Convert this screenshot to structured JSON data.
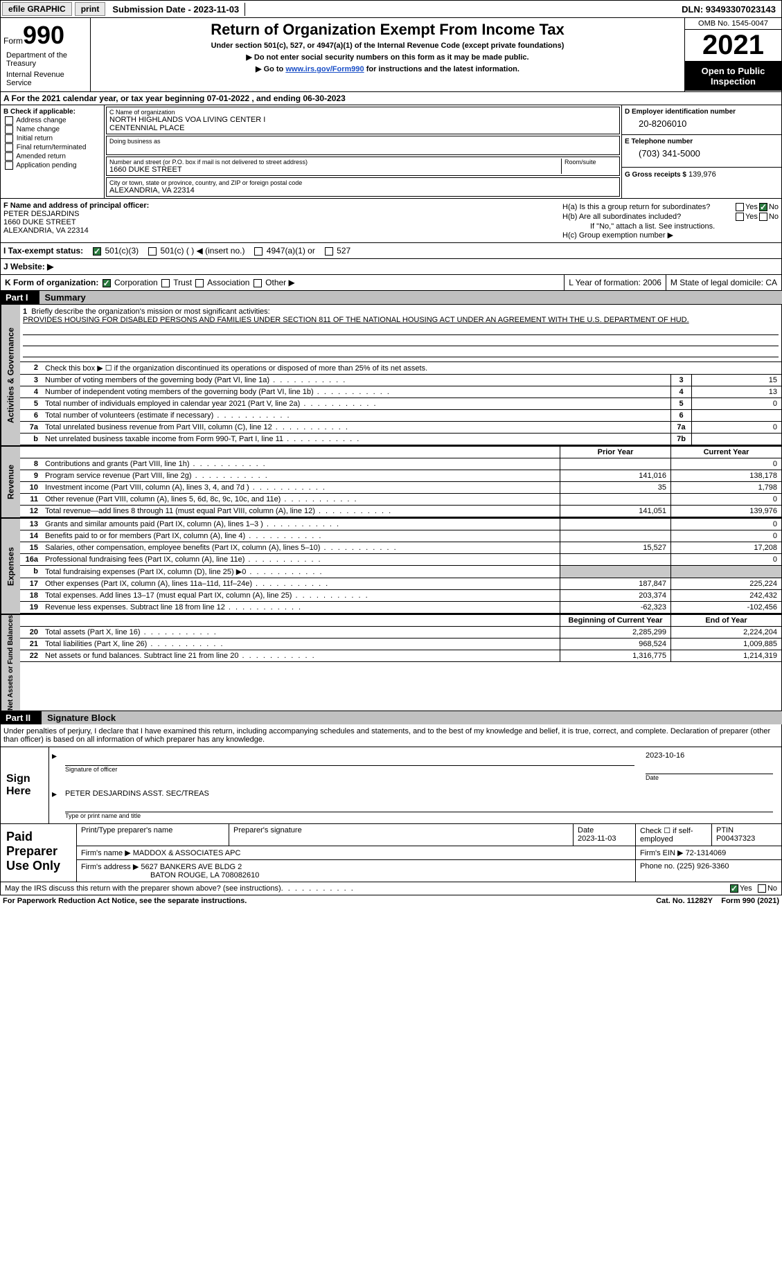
{
  "topbar": {
    "efile": "efile GRAPHIC",
    "print": "print",
    "submission": "Submission Date - 2023-11-03",
    "dln": "DLN: 93493307023143"
  },
  "header": {
    "form": "Form",
    "formnum": "990",
    "dept": "Department of the Treasury",
    "irs": "Internal Revenue Service",
    "title": "Return of Organization Exempt From Income Tax",
    "sub1": "Under section 501(c), 527, or 4947(a)(1) of the Internal Revenue Code (except private foundations)",
    "sub2": "▶ Do not enter social security numbers on this form as it may be made public.",
    "sub3": "▶ Go to ",
    "sub3link": "www.irs.gov/Form990",
    "sub3b": " for instructions and the latest information.",
    "omb": "OMB No. 1545-0047",
    "year": "2021",
    "opentopublic": "Open to Public Inspection"
  },
  "rowA": "A For the 2021 calendar year, or tax year beginning 07-01-2022    , and ending 06-30-2023",
  "colB": {
    "title": "B Check if applicable:",
    "items": [
      "Address change",
      "Name change",
      "Initial return",
      "Final return/terminated",
      "Amended return",
      "Application pending"
    ]
  },
  "colC": {
    "nameLbl": "C Name of organization",
    "name1": "NORTH HIGHLANDS VOA LIVING CENTER I",
    "name2": "CENTENNIAL PLACE",
    "dba": "Doing business as",
    "addrLbl": "Number and street (or P.O. box if mail is not delivered to street address)",
    "roomLbl": "Room/suite",
    "addr": "1660 DUKE STREET",
    "cityLbl": "City or town, state or province, country, and ZIP or foreign postal code",
    "city": "ALEXANDRIA, VA  22314"
  },
  "colD": {
    "einLbl": "D Employer identification number",
    "ein": "20-8206010",
    "telLbl": "E Telephone number",
    "tel": "(703) 341-5000",
    "grossLbl": "G Gross receipts $",
    "gross": "139,976"
  },
  "colF": {
    "lbl": "F  Name and address of principal officer:",
    "name": "PETER DESJARDINS",
    "addr1": "1660 DUKE STREET",
    "addr2": "ALEXANDRIA, VA  22314"
  },
  "colH": {
    "ha": "H(a)  Is this a group return for subordinates?",
    "hb": "H(b)  Are all subordinates included?",
    "hbnote": "If \"No,\" attach a list. See instructions.",
    "hc": "H(c)  Group exemption number ▶",
    "yes": "Yes",
    "no": "No"
  },
  "taxStatus": {
    "lbl": "I   Tax-exempt status:",
    "opts": [
      "501(c)(3)",
      "501(c) (  ) ◀ (insert no.)",
      "4947(a)(1) or",
      "527"
    ]
  },
  "website": "J   Website: ▶",
  "korg": {
    "k": "K Form of organization:",
    "opts": [
      "Corporation",
      "Trust",
      "Association",
      "Other ▶"
    ],
    "l": "L Year of formation: 2006",
    "m": "M State of legal domicile: CA"
  },
  "part1": {
    "pn": "Part I",
    "pt": "Summary",
    "sideA": "Activities & Governance",
    "sideR": "Revenue",
    "sideE": "Expenses",
    "sideN": "Net Assets or Fund Balances",
    "l1": "Briefly describe the organization's mission or most significant activities:",
    "mission": "PROVIDES HOUSING FOR DISABLED PERSONS AND FAMILIES UNDER SECTION 811 OF THE NATIONAL HOUSING ACT UNDER AN AGREEMENT WITH THE U.S. DEPARTMENT OF HUD.",
    "l2": "Check this box ▶ ☐  if the organization discontinued its operations or disposed of more than 25% of its net assets.",
    "rows": [
      {
        "n": "3",
        "d": "Number of voting members of the governing body (Part VI, line 1a)",
        "b": "3",
        "v": "15"
      },
      {
        "n": "4",
        "d": "Number of independent voting members of the governing body (Part VI, line 1b)",
        "b": "4",
        "v": "13"
      },
      {
        "n": "5",
        "d": "Total number of individuals employed in calendar year 2021 (Part V, line 2a)",
        "b": "5",
        "v": "0"
      },
      {
        "n": "6",
        "d": "Total number of volunteers (estimate if necessary)",
        "b": "6",
        "v": ""
      },
      {
        "n": "7a",
        "d": "Total unrelated business revenue from Part VIII, column (C), line 12",
        "b": "7a",
        "v": "0"
      },
      {
        "n": "b",
        "d": "Net unrelated business taxable income from Form 990-T, Part I, line 11",
        "b": "7b",
        "v": ""
      }
    ],
    "priorYear": "Prior Year",
    "currentYear": "Current Year",
    "rev": [
      {
        "n": "8",
        "d": "Contributions and grants (Part VIII, line 1h)",
        "v1": "",
        "v2": "0"
      },
      {
        "n": "9",
        "d": "Program service revenue (Part VIII, line 2g)",
        "v1": "141,016",
        "v2": "138,178"
      },
      {
        "n": "10",
        "d": "Investment income (Part VIII, column (A), lines 3, 4, and 7d )",
        "v1": "35",
        "v2": "1,798"
      },
      {
        "n": "11",
        "d": "Other revenue (Part VIII, column (A), lines 5, 6d, 8c, 9c, 10c, and 11e)",
        "v1": "",
        "v2": "0"
      },
      {
        "n": "12",
        "d": "Total revenue—add lines 8 through 11 (must equal Part VIII, column (A), line 12)",
        "v1": "141,051",
        "v2": "139,976"
      }
    ],
    "exp": [
      {
        "n": "13",
        "d": "Grants and similar amounts paid (Part IX, column (A), lines 1–3 )",
        "v1": "",
        "v2": "0"
      },
      {
        "n": "14",
        "d": "Benefits paid to or for members (Part IX, column (A), line 4)",
        "v1": "",
        "v2": "0"
      },
      {
        "n": "15",
        "d": "Salaries, other compensation, employee benefits (Part IX, column (A), lines 5–10)",
        "v1": "15,527",
        "v2": "17,208"
      },
      {
        "n": "16a",
        "d": "Professional fundraising fees (Part IX, column (A), line 11e)",
        "v1": "",
        "v2": "0"
      },
      {
        "n": "b",
        "d": "Total fundraising expenses (Part IX, column (D), line 25) ▶0",
        "v1": "",
        "v2": "",
        "shade": true
      },
      {
        "n": "17",
        "d": "Other expenses (Part IX, column (A), lines 11a–11d, 11f–24e)",
        "v1": "187,847",
        "v2": "225,224"
      },
      {
        "n": "18",
        "d": "Total expenses. Add lines 13–17 (must equal Part IX, column (A), line 25)",
        "v1": "203,374",
        "v2": "242,432"
      },
      {
        "n": "19",
        "d": "Revenue less expenses. Subtract line 18 from line 12",
        "v1": "-62,323",
        "v2": "-102,456"
      }
    ],
    "begYear": "Beginning of Current Year",
    "endYear": "End of Year",
    "net": [
      {
        "n": "20",
        "d": "Total assets (Part X, line 16)",
        "v1": "2,285,299",
        "v2": "2,224,204"
      },
      {
        "n": "21",
        "d": "Total liabilities (Part X, line 26)",
        "v1": "968,524",
        "v2": "1,009,885"
      },
      {
        "n": "22",
        "d": "Net assets or fund balances. Subtract line 21 from line 20",
        "v1": "1,316,775",
        "v2": "1,214,319"
      }
    ]
  },
  "part2": {
    "pn": "Part II",
    "pt": "Signature Block",
    "decl": "Under penalties of perjury, I declare that I have examined this return, including accompanying schedules and statements, and to the best of my knowledge and belief, it is true, correct, and complete. Declaration of preparer (other than officer) is based on all information of which preparer has any knowledge.",
    "signHere": "Sign Here",
    "sigOfficer": "Signature of officer",
    "sigDate": "2023-10-16",
    "date": "Date",
    "sigName": "PETER DESJARDINS  ASST. SEC/TREAS",
    "sigNameLbl": "Type or print name and title",
    "paid": "Paid Preparer Use Only",
    "prepName": "Print/Type preparer's name",
    "prepSig": "Preparer's signature",
    "prepDate": "Date",
    "prepDateVal": "2023-11-03",
    "checkSelf": "Check ☐ if self-employed",
    "ptin": "PTIN",
    "ptinVal": "P00437323",
    "firmName": "Firm's name     ▶",
    "firmNameVal": "MADDOX & ASSOCIATES APC",
    "firmEin": "Firm's EIN ▶",
    "firmEinVal": "72-1314069",
    "firmAddr": "Firm's address ▶",
    "firmAddrVal1": "5627 BANKERS AVE BLDG 2",
    "firmAddrVal2": "BATON ROUGE, LA  708082610",
    "phone": "Phone no.",
    "phoneVal": "(225) 926-3360",
    "discuss": "May the IRS discuss this return with the preparer shown above? (see instructions)",
    "yes": "Yes",
    "no": "No"
  },
  "footer": {
    "left": "For Paperwork Reduction Act Notice, see the separate instructions.",
    "mid": "Cat. No. 11282Y",
    "right": "Form 990 (2021)"
  }
}
